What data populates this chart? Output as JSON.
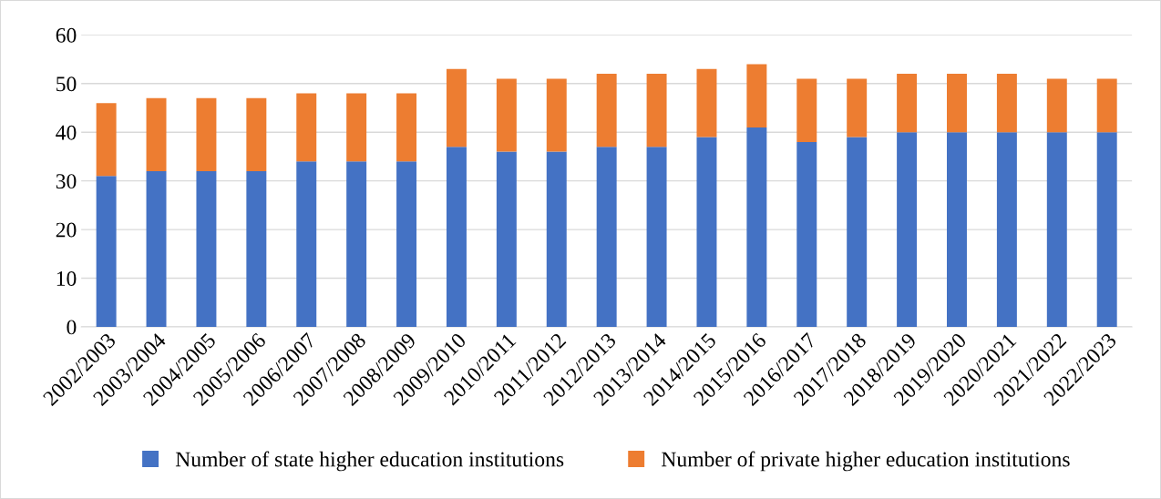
{
  "chart_data": {
    "type": "bar",
    "stacked": true,
    "categories": [
      "2002/2003",
      "2003/2004",
      "2004/2005",
      "2005/2006",
      "2006/2007",
      "2007/2008",
      "2008/2009",
      "2009/2010",
      "2010/2011",
      "2011/2012",
      "2012/2013",
      "2013/2014",
      "2014/2015",
      "2015/2016",
      "2016/2017",
      "2017/2018",
      "2018/2019",
      "2019/2020",
      "2020/2021",
      "2021/2022",
      "2022/2023"
    ],
    "series": [
      {
        "name": "Number of state higher education institutions",
        "color": "#4472c4",
        "values": [
          31,
          32,
          32,
          32,
          34,
          34,
          34,
          37,
          36,
          36,
          37,
          37,
          39,
          41,
          38,
          39,
          40,
          40,
          40,
          40,
          40
        ]
      },
      {
        "name": "Number of private higher education institutions",
        "color": "#ed7d31",
        "values": [
          15,
          15,
          15,
          15,
          14,
          14,
          14,
          16,
          15,
          15,
          15,
          15,
          14,
          13,
          13,
          12,
          12,
          12,
          12,
          11,
          11
        ]
      }
    ],
    "ylim": [
      0,
      60
    ],
    "yticks": [
      0,
      10,
      20,
      30,
      40,
      50,
      60
    ],
    "grid": "y",
    "legend": "bottom"
  }
}
